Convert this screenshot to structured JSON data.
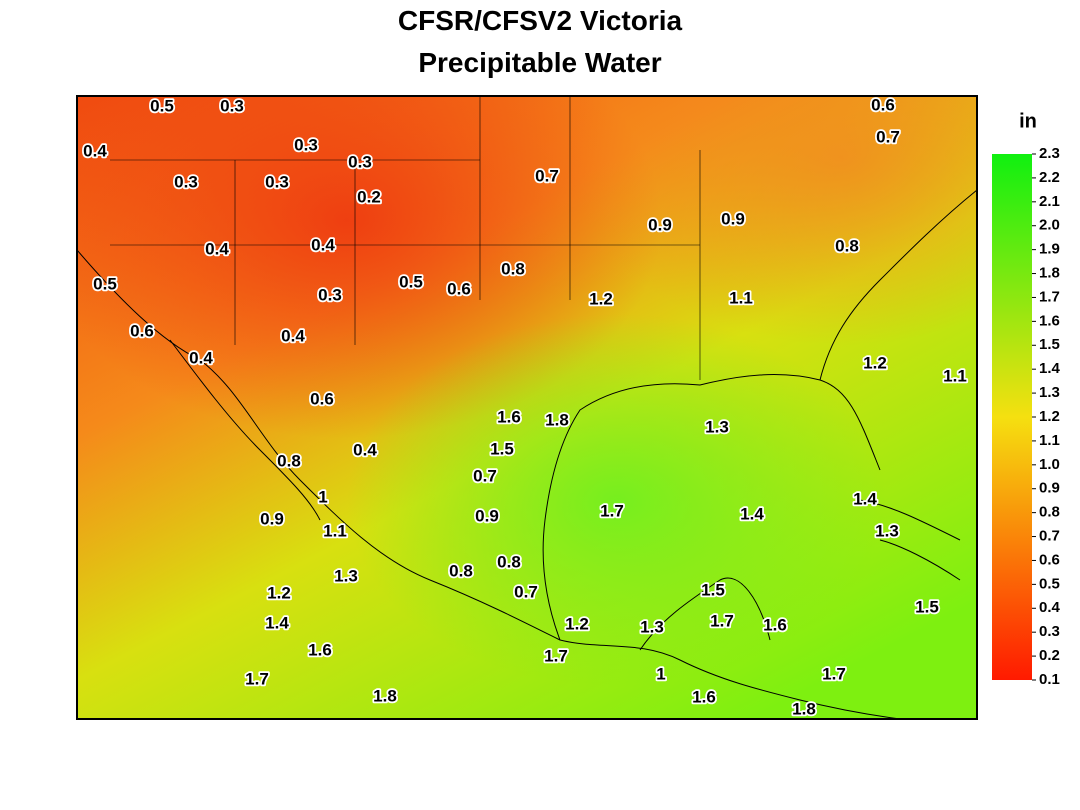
{
  "title": "CFSR/CFSV2 Victoria",
  "subtitle": "Precipitable Water",
  "colorbar": {
    "unit": "in",
    "ylim": [
      0.1,
      2.3
    ],
    "yticks": [
      0.1,
      0.2,
      0.3,
      0.4,
      0.5,
      0.6,
      0.7,
      0.8,
      0.9,
      {
        "value": 1,
        "label": "1.0"
      },
      1.1,
      1.2,
      1.3,
      1.4,
      1.5,
      1.6,
      1.7,
      1.8,
      1.9,
      {
        "value": 2,
        "label": "2.0"
      },
      2.1,
      2.2,
      2.3
    ]
  },
  "contour_labels": [
    0.5,
    0.3,
    0.6,
    0.7,
    0.4,
    0.3,
    0.3,
    0.3,
    0.3,
    0.2,
    0.7,
    0.9,
    0.9,
    0.4,
    0.4,
    0.8,
    0.8,
    0.5,
    0.5,
    0.6,
    0.3,
    1.2,
    1.1,
    0.6,
    0.4,
    0.4,
    1.2,
    1.1,
    0.6,
    1.6,
    1.8,
    1.3,
    0.4,
    1.5,
    0.8,
    0.7,
    1,
    1.4,
    0.9,
    1.1,
    0.9,
    1.7,
    1.4,
    1.3,
    0.8,
    1.3,
    0.8,
    1.2,
    0.7,
    1.5,
    1.5,
    1.4,
    1.2,
    1.3,
    1.7,
    1.6,
    1.6,
    1.7,
    1,
    1.7,
    1.7,
    1.8,
    1.6,
    1.8
  ]
}
